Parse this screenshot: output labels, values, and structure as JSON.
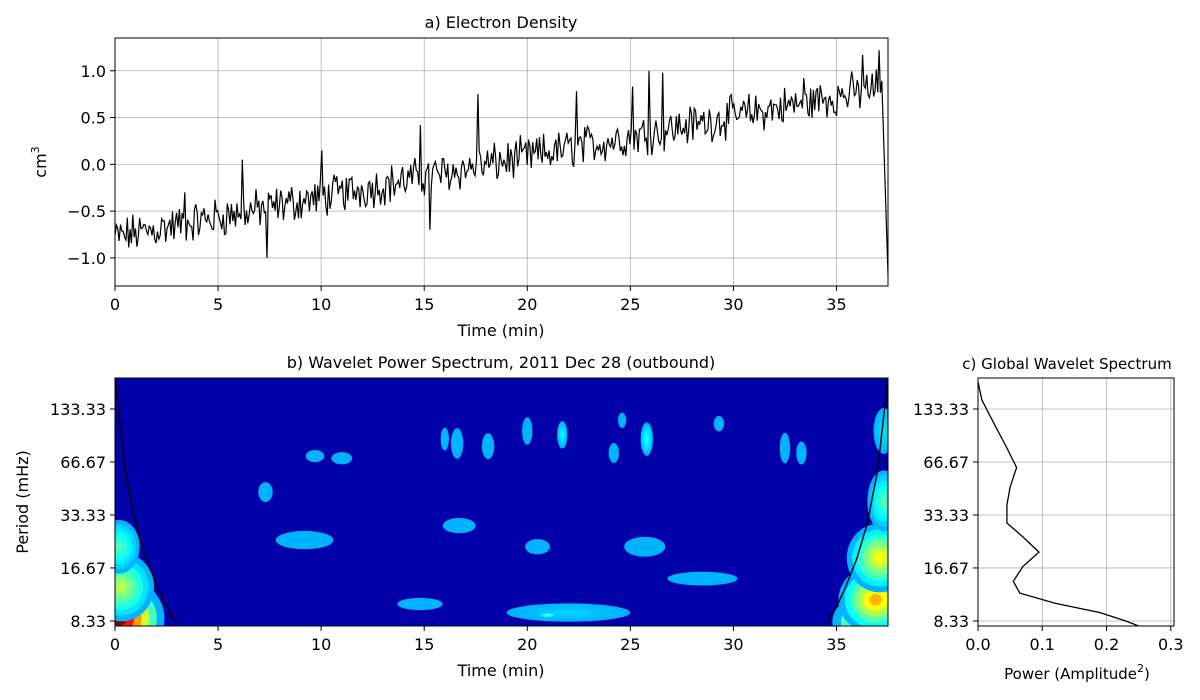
{
  "chart_data": [
    {
      "type": "line",
      "title": "a) Electron Density",
      "xlabel": "Time (min)",
      "ylabel": "cm",
      "ylabel_superscript": "3",
      "xlim": [
        0,
        37.5
      ],
      "ylim": [
        -1.3,
        1.35
      ],
      "xticks": [
        0,
        5,
        10,
        15,
        20,
        25,
        30,
        35
      ],
      "yticks": [
        -1.0,
        -0.5,
        0.0,
        0.5,
        1.0
      ],
      "ytick_labels": [
        "−1.0",
        "−0.5",
        "0.0",
        "0.5",
        "1.0"
      ],
      "grid": true,
      "line_color": "#000000",
      "trend": {
        "start": -0.78,
        "end": 0.82
      },
      "noise_amplitude": 0.17,
      "spikes": [
        {
          "x": 3.4,
          "y": -0.3
        },
        {
          "x": 6.2,
          "y": 0.05
        },
        {
          "x": 7.4,
          "y": -1.0
        },
        {
          "x": 10.0,
          "y": 0.15
        },
        {
          "x": 14.8,
          "y": 0.42
        },
        {
          "x": 15.3,
          "y": -0.7
        },
        {
          "x": 17.6,
          "y": 0.75
        },
        {
          "x": 22.4,
          "y": 0.78
        },
        {
          "x": 25.1,
          "y": 0.83
        },
        {
          "x": 25.9,
          "y": 1.0
        },
        {
          "x": 26.6,
          "y": 0.98
        },
        {
          "x": 33.4,
          "y": 0.92
        },
        {
          "x": 36.3,
          "y": 1.17
        },
        {
          "x": 37.1,
          "y": 1.22
        }
      ],
      "end_drop": {
        "x": 37.5,
        "y": -1.18
      }
    },
    {
      "type": "heatmap",
      "title": "b) Wavelet Power Spectrum, 2011 Dec 28 (outbound)",
      "xlabel": "Time (min)",
      "ylabel": "Period (mHz)",
      "xlim": [
        0,
        37.5
      ],
      "xticks": [
        0,
        5,
        10,
        15,
        20,
        25,
        30,
        35
      ],
      "yticks": [
        133.33,
        66.67,
        33.33,
        16.67,
        8.33
      ],
      "ytick_labels": [
        "133.33",
        "66.67",
        "33.33",
        "16.67",
        "8.33"
      ],
      "ylim_log": [
        7.8,
        200
      ],
      "colormap": "jet",
      "background_color": "#0000a8",
      "blobs": [
        {
          "x": 0.2,
          "y": 8.6,
          "rx": 2.2,
          "ry": 0.55,
          "intensity": 1.0
        },
        {
          "x": 0.3,
          "y": 13,
          "rx": 1.6,
          "ry": 0.45,
          "intensity": 0.55
        },
        {
          "x": 0.2,
          "y": 22,
          "rx": 1.0,
          "ry": 0.35,
          "intensity": 0.45
        },
        {
          "x": 37.3,
          "y": 8.2,
          "rx": 2.5,
          "ry": 0.45,
          "intensity": 1.0
        },
        {
          "x": 36.9,
          "y": 11,
          "rx": 1.8,
          "ry": 0.45,
          "intensity": 0.7
        },
        {
          "x": 37.1,
          "y": 19,
          "rx": 1.6,
          "ry": 0.45,
          "intensity": 0.62
        },
        {
          "x": 37.3,
          "y": 40,
          "rx": 0.8,
          "ry": 0.4,
          "intensity": 0.45
        },
        {
          "x": 37.3,
          "y": 100,
          "rx": 0.5,
          "ry": 0.3,
          "intensity": 0.35
        },
        {
          "x": 9.2,
          "y": 24,
          "rx": 1.4,
          "ry": 0.12,
          "intensity": 0.3
        },
        {
          "x": 7.3,
          "y": 45,
          "rx": 0.35,
          "ry": 0.13,
          "intensity": 0.3
        },
        {
          "x": 9.7,
          "y": 72,
          "rx": 0.45,
          "ry": 0.08,
          "intensity": 0.3
        },
        {
          "x": 14.8,
          "y": 10.4,
          "rx": 1.1,
          "ry": 0.08,
          "intensity": 0.3
        },
        {
          "x": 16.7,
          "y": 29,
          "rx": 0.8,
          "ry": 0.1,
          "intensity": 0.3
        },
        {
          "x": 20.5,
          "y": 22,
          "rx": 0.6,
          "ry": 0.1,
          "intensity": 0.3
        },
        {
          "x": 22.0,
          "y": 9.3,
          "rx": 3.0,
          "ry": 0.12,
          "intensity": 0.33
        },
        {
          "x": 21.0,
          "y": 9.0,
          "rx": 0.5,
          "ry": 0.04,
          "intensity": 0.45
        },
        {
          "x": 25.7,
          "y": 22,
          "rx": 1.0,
          "ry": 0.13,
          "intensity": 0.3
        },
        {
          "x": 28.5,
          "y": 14.5,
          "rx": 1.7,
          "ry": 0.09,
          "intensity": 0.3
        },
        {
          "x": 20.0,
          "y": 100,
          "rx": 0.25,
          "ry": 0.18,
          "intensity": 0.3
        },
        {
          "x": 21.7,
          "y": 95,
          "rx": 0.25,
          "ry": 0.18,
          "intensity": 0.38
        },
        {
          "x": 25.8,
          "y": 90,
          "rx": 0.3,
          "ry": 0.22,
          "intensity": 0.4
        },
        {
          "x": 16.6,
          "y": 85,
          "rx": 0.3,
          "ry": 0.2,
          "intensity": 0.3
        },
        {
          "x": 18.1,
          "y": 82,
          "rx": 0.3,
          "ry": 0.17,
          "intensity": 0.3
        },
        {
          "x": 24.2,
          "y": 75,
          "rx": 0.25,
          "ry": 0.13,
          "intensity": 0.3
        },
        {
          "x": 11.0,
          "y": 70,
          "rx": 0.5,
          "ry": 0.08,
          "intensity": 0.3
        },
        {
          "x": 32.5,
          "y": 80,
          "rx": 0.25,
          "ry": 0.2,
          "intensity": 0.3
        },
        {
          "x": 33.3,
          "y": 75,
          "rx": 0.25,
          "ry": 0.15,
          "intensity": 0.3
        },
        {
          "x": 29.3,
          "y": 110,
          "rx": 0.25,
          "ry": 0.1,
          "intensity": 0.3
        },
        {
          "x": 24.6,
          "y": 115,
          "rx": 0.2,
          "ry": 0.1,
          "intensity": 0.3
        },
        {
          "x": 16.0,
          "y": 90,
          "rx": 0.2,
          "ry": 0.15,
          "intensity": 0.3
        }
      ],
      "cone_of_influence": [
        {
          "x": 0.0,
          "y": 200
        },
        {
          "x": 0.5,
          "y": 60
        },
        {
          "x": 1.0,
          "y": 30
        },
        {
          "x": 1.5,
          "y": 19
        },
        {
          "x": 2.0,
          "y": 13.5
        },
        {
          "x": 2.5,
          "y": 10
        },
        {
          "x": 3.0,
          "y": 8.1
        },
        {
          "x": 34.5,
          "y": 8.1
        },
        {
          "x": 35.0,
          "y": 10
        },
        {
          "x": 35.5,
          "y": 13.5
        },
        {
          "x": 36.0,
          "y": 19
        },
        {
          "x": 36.5,
          "y": 30
        },
        {
          "x": 37.0,
          "y": 60
        },
        {
          "x": 37.5,
          "y": 200
        }
      ]
    },
    {
      "type": "line",
      "title": "c) Global Wavelet Spectrum",
      "xlabel": "Power (Amplitude",
      "xlabel_superscript": "2",
      "xlabel_suffix": ")",
      "xlim": [
        0,
        0.305
      ],
      "xticks": [
        0.0,
        0.1,
        0.2,
        0.3
      ],
      "xtick_labels": [
        "0.0",
        "0.1",
        "0.2",
        "0.3"
      ],
      "yticks": [
        133.33,
        66.67,
        33.33,
        16.67,
        8.33
      ],
      "ytick_labels": [
        "133.33",
        "66.67",
        "33.33",
        "16.67",
        "8.33"
      ],
      "ylim_log": [
        7.8,
        200
      ],
      "grid": true,
      "curve": [
        {
          "power": 0.25,
          "period": 7.8
        },
        {
          "power": 0.23,
          "period": 8.33
        },
        {
          "power": 0.19,
          "period": 9.3
        },
        {
          "power": 0.12,
          "period": 10.5
        },
        {
          "power": 0.065,
          "period": 12
        },
        {
          "power": 0.055,
          "period": 14
        },
        {
          "power": 0.07,
          "period": 17
        },
        {
          "power": 0.095,
          "period": 20.5
        },
        {
          "power": 0.07,
          "period": 25
        },
        {
          "power": 0.045,
          "period": 30
        },
        {
          "power": 0.045,
          "period": 38
        },
        {
          "power": 0.05,
          "period": 48
        },
        {
          "power": 0.06,
          "period": 62
        },
        {
          "power": 0.045,
          "period": 80
        },
        {
          "power": 0.025,
          "period": 110
        },
        {
          "power": 0.006,
          "period": 150
        },
        {
          "power": 0.0,
          "period": 190
        }
      ]
    }
  ]
}
